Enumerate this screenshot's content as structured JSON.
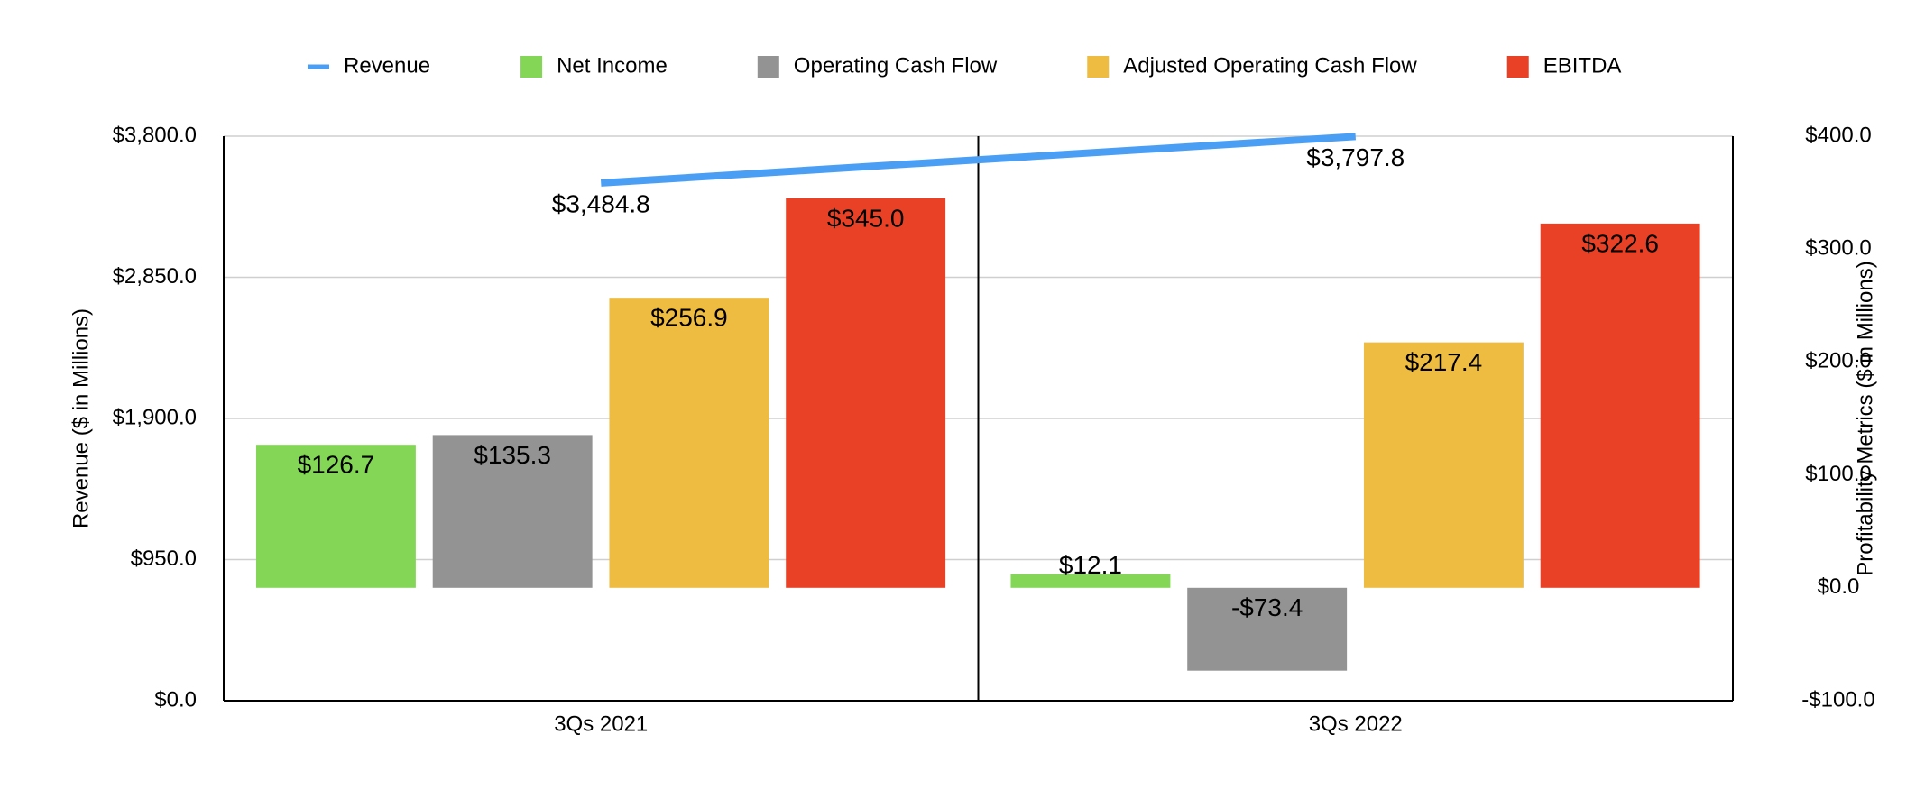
{
  "chart_data": {
    "type": "bar",
    "categories": [
      "3Qs 2021",
      "3Qs 2022"
    ],
    "series": [
      {
        "name": "Revenue",
        "type": "line",
        "axis": "y",
        "color": "#4a9ff5",
        "values": [
          3484.8,
          3797.8
        ],
        "value_labels": [
          "$3,484.8",
          "$3,797.8"
        ]
      },
      {
        "name": "Net Income",
        "axis": "y2",
        "color": "#84d656",
        "values": [
          126.7,
          12.1
        ],
        "value_labels": [
          "$126.7",
          "$12.1"
        ]
      },
      {
        "name": "Operating Cash Flow",
        "axis": "y2",
        "color": "#939393",
        "values": [
          135.3,
          -73.4
        ],
        "value_labels": [
          "$135.3",
          "-$73.4"
        ]
      },
      {
        "name": "Adjusted Operating Cash Flow",
        "axis": "y2",
        "color": "#eebc41",
        "values": [
          256.9,
          217.4
        ],
        "value_labels": [
          "$256.9",
          "$217.4"
        ]
      },
      {
        "name": "EBITDA",
        "axis": "y2",
        "color": "#e94126",
        "values": [
          345.0,
          322.6
        ],
        "value_labels": [
          "$345.0",
          "$322.6"
        ]
      }
    ],
    "ylabel": "Revenue ($ in Millions)",
    "y2label": "Profitability Metrics ($ in Millions)",
    "ylim": [
      0,
      3800
    ],
    "yticks": [
      {
        "value": 0,
        "label": "$0.0"
      },
      {
        "value": 950,
        "label": "$950.0"
      },
      {
        "value": 1900,
        "label": "$1,900.0"
      },
      {
        "value": 2850,
        "label": "$2,850.0"
      },
      {
        "value": 3800,
        "label": "$3,800.0"
      }
    ],
    "y2lim": [
      -100,
      400
    ],
    "y2ticks": [
      {
        "value": -100,
        "label": "-$100.0"
      },
      {
        "value": 0,
        "label": "$0.0"
      },
      {
        "value": 100,
        "label": "$100.0"
      },
      {
        "value": 200,
        "label": "$200.0"
      },
      {
        "value": 300,
        "label": "$300.0"
      },
      {
        "value": 400,
        "label": "$400.0"
      }
    ],
    "grid": true,
    "legend": "top"
  }
}
